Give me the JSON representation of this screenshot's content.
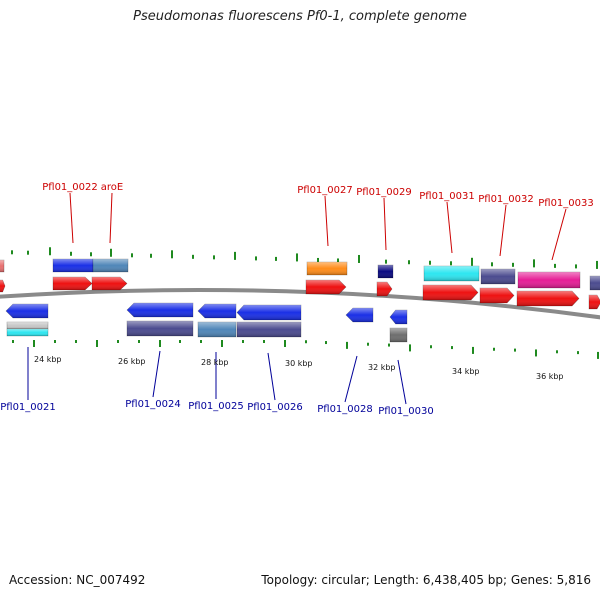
{
  "title": "Pseudomonas fluorescens Pf0-1, complete genome",
  "footer": {
    "accession": "Accession: NC_007492",
    "summary": "Topology: circular; Length: 6,438,405 bp; Genes: 5,816"
  },
  "colors": {
    "backbone": "#8a8a8a",
    "tick": "#1f8a1f",
    "label_top": "#cc0000",
    "label_bottom": "#000099"
  },
  "top_labels": [
    "Pfl01_0022",
    "aroE",
    "Pfl01_0027",
    "Pfl01_0029",
    "Pfl01_0031",
    "Pfl01_0032",
    "Pfl01_0033"
  ],
  "bottom_labels": [
    "Pfl01_0021",
    "Pfl01_0024",
    "Pfl01_0025",
    "Pfl01_0026",
    "Pfl01_0028",
    "Pfl01_0030"
  ],
  "kbp_labels": [
    "24 kbp",
    "26 kbp",
    "28 kbp",
    "30 kbp",
    "32 kbp",
    "34 kbp",
    "36 kbp"
  ]
}
